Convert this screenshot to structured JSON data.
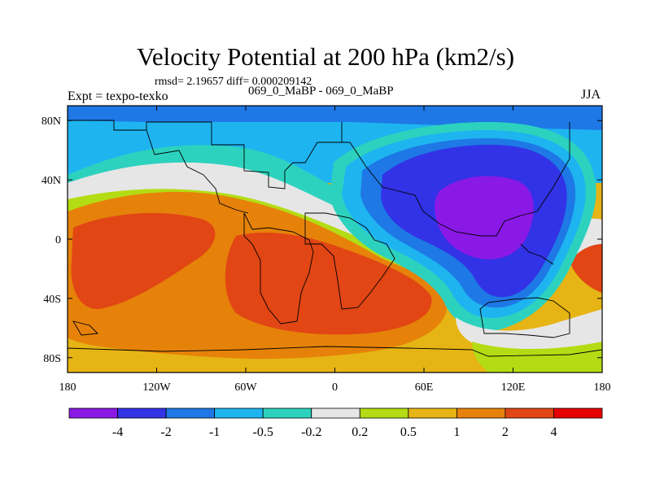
{
  "chart_data": {
    "type": "heatmap",
    "title": "Velocity Potential at 200 hPa (km2/s)",
    "stats": "rmsd= 2.19657  diff= 0.000209142",
    "experiment": "Expt = texpo-texko",
    "run_label": "069_0_MaBP - 069_0_MaBP",
    "season": "JJA",
    "x_ticks": [
      "180",
      "120W",
      "60W",
      "0",
      "60E",
      "120E",
      "180"
    ],
    "x_tick_values": [
      -180,
      -120,
      -60,
      0,
      60,
      120,
      180
    ],
    "y_ticks": [
      "80N",
      "40N",
      "0",
      "40S",
      "80S"
    ],
    "y_tick_values": [
      80,
      40,
      0,
      -40,
      -80
    ],
    "xlim": [
      -180,
      180
    ],
    "ylim": [
      -90,
      90
    ],
    "colorbar": {
      "levels": [
        "-4",
        "-2",
        "-1",
        "-0.5",
        "-0.2",
        "0.2",
        "0.5",
        "1",
        "2",
        "4"
      ],
      "colors": [
        "#8a19e6",
        "#3232e6",
        "#1e78e6",
        "#1eb4f0",
        "#2dd2be",
        "#e6e6e6",
        "#b4dc14",
        "#e6b414",
        "#e6820a",
        "#e14614",
        "#e60000"
      ]
    },
    "field_regions": [
      {
        "name": "southern-mid-lat-positive",
        "value_range": "1 to 2"
      },
      {
        "name": "atlantic-positive-max",
        "value_range": "2 to 4"
      },
      {
        "name": "pacific-positive-max",
        "value_range": "2 to 4"
      },
      {
        "name": "asia-negative-max",
        "value_range": "-4 to -2"
      },
      {
        "name": "arctic-negative",
        "value_range": "-1 to -0.2"
      }
    ]
  }
}
